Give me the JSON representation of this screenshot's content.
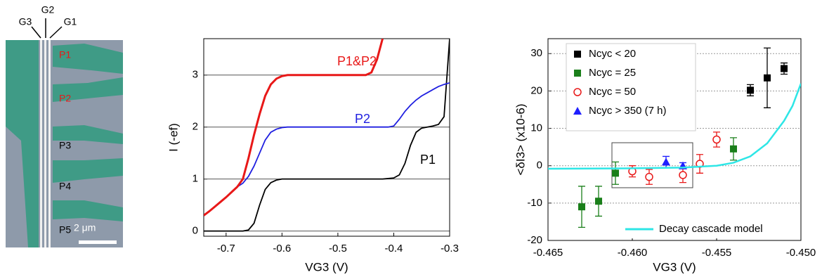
{
  "micrograph": {
    "gate_labels": [
      "G3",
      "G2",
      "G1"
    ],
    "pump_labels": [
      "P1",
      "P2",
      "P3",
      "P4",
      "P5"
    ],
    "scale_bar": "2 μm"
  },
  "chart_data": [
    {
      "type": "line",
      "x_label": "VG3 (V)",
      "y_label": "I (-ef)",
      "x": [
        -0.74,
        -0.73,
        -0.72,
        -0.71,
        -0.7,
        -0.69,
        -0.68,
        -0.67,
        -0.66,
        -0.65,
        -0.64,
        -0.63,
        -0.62,
        -0.61,
        -0.6,
        -0.59,
        -0.58,
        -0.57,
        -0.56,
        -0.55,
        -0.54,
        -0.53,
        -0.52,
        -0.51,
        -0.5,
        -0.49,
        -0.48,
        -0.47,
        -0.46,
        -0.45,
        -0.44,
        -0.43,
        -0.42,
        -0.41,
        -0.4,
        -0.39,
        -0.38,
        -0.37,
        -0.36,
        -0.35,
        -0.34,
        -0.33,
        -0.32,
        -0.31,
        -0.3
      ],
      "series": [
        {
          "name": "P1",
          "color": "#000000",
          "values": [
            0,
            0,
            0,
            0,
            0,
            0,
            0,
            0,
            0.02,
            0.15,
            0.5,
            0.8,
            0.93,
            0.98,
            1,
            1,
            1,
            1,
            1,
            1,
            1,
            1,
            1,
            1,
            1,
            1,
            1,
            1,
            1,
            1,
            1,
            1,
            1,
            1.01,
            1.02,
            1.08,
            1.3,
            1.65,
            1.9,
            1.98,
            2,
            2.02,
            2.05,
            2.2,
            3.7
          ]
        },
        {
          "name": "P2",
          "color": "#1f1fe0",
          "values": [
            0.3,
            0.38,
            0.47,
            0.56,
            0.65,
            0.75,
            0.85,
            0.92,
            1.05,
            1.25,
            1.5,
            1.75,
            1.9,
            1.96,
            1.99,
            2,
            2,
            2,
            2,
            2,
            2,
            2,
            2,
            2,
            2,
            2,
            2,
            2,
            2,
            2,
            2,
            2,
            2,
            2,
            2.02,
            2.15,
            2.3,
            2.42,
            2.52,
            2.6,
            2.66,
            2.72,
            2.78,
            2.82,
            2.85
          ]
        },
        {
          "name": "P1&P2",
          "color": "#e81818",
          "values": [
            0.3,
            0.38,
            0.47,
            0.56,
            0.65,
            0.75,
            0.85,
            1.0,
            1.4,
            1.85,
            2.25,
            2.6,
            2.82,
            2.93,
            2.98,
            3,
            3,
            3,
            3,
            3,
            3,
            3,
            3,
            3,
            3,
            3,
            3,
            3,
            3,
            3,
            3.05,
            3.3,
            3.7,
            null,
            null,
            null,
            null,
            null,
            null,
            null,
            null,
            null,
            null,
            null,
            null
          ]
        }
      ],
      "xlim": [
        -0.74,
        -0.3
      ],
      "ylim": [
        -0.1,
        3.7
      ],
      "xticks": [
        -0.7,
        -0.6,
        -0.5,
        -0.4,
        -0.3
      ],
      "yticks": [
        0,
        1,
        2,
        3
      ],
      "grid": true
    },
    {
      "type": "scatter",
      "x_label": "VG3 (V)",
      "y_label": "<δI3> (x10-6)",
      "series": [
        {
          "name": "Ncyc < 20",
          "color": "#000000",
          "marker": "square",
          "x": [
            -0.453,
            -0.452,
            -0.451
          ],
          "values": [
            20.2,
            23.5,
            26
          ],
          "errors": [
            1.5,
            8,
            1.5
          ]
        },
        {
          "name": "Ncyc = 25",
          "color": "#1a7f1a",
          "marker": "square",
          "x": [
            -0.463,
            -0.462,
            -0.461,
            -0.454
          ],
          "values": [
            -11,
            -9.5,
            -2,
            4.5
          ],
          "errors": [
            5.5,
            4,
            3,
            3
          ]
        },
        {
          "name": "Ncyc = 50",
          "color": "#e81818",
          "marker": "circle",
          "x": [
            -0.46,
            -0.459,
            -0.457,
            -0.456,
            -0.455
          ],
          "values": [
            -1.5,
            -3,
            -2.5,
            0.5,
            7
          ],
          "errors": [
            1.5,
            2,
            2,
            2.5,
            2
          ]
        },
        {
          "name": "Ncyc > 350 (7 h)",
          "color": "#1f1fff",
          "marker": "triangle",
          "x": [
            -0.458,
            -0.457
          ],
          "values": [
            1,
            0
          ],
          "errors": [
            1.5,
            0.8
          ]
        },
        {
          "name": "Decay cascade model",
          "color": "#2ee6e6",
          "marker": "line",
          "x": [
            -0.465,
            -0.46,
            -0.457,
            -0.455,
            -0.454,
            -0.453,
            -0.452,
            -0.451,
            -0.4505,
            -0.45
          ],
          "values": [
            -0.8,
            -0.7,
            -0.5,
            0,
            0.8,
            2.5,
            6,
            12,
            16,
            22
          ]
        }
      ],
      "xlim": [
        -0.465,
        -0.45
      ],
      "ylim": [
        -20,
        34
      ],
      "xticks": [
        {
          "value": -0.465,
          "label": "-0.465"
        },
        {
          "value": -0.46,
          "label": "-0.460"
        },
        {
          "value": -0.455,
          "label": "-0.455"
        },
        {
          "value": -0.45,
          "label": "-0.450"
        }
      ],
      "yticks": [
        -20,
        -10,
        0,
        10,
        20,
        30
      ],
      "grid": true
    }
  ]
}
